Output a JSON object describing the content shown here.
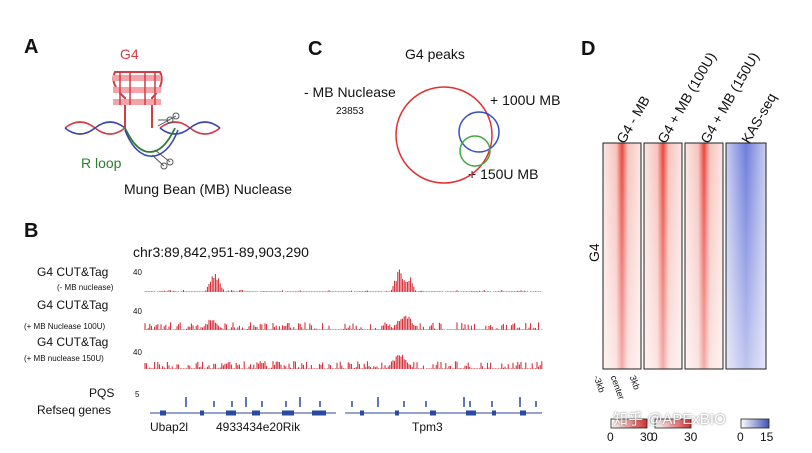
{
  "panels": {
    "a": "A",
    "b": "B",
    "c": "C",
    "d": "D"
  },
  "panel_a": {
    "g4_label": "G4",
    "rloop_label": "R loop",
    "nuclease_label": "Mung Bean (MB) Nuclease",
    "colors": {
      "g4": "#d33b45",
      "rloop": "#2e7d32",
      "dna_red": "#d33b45",
      "dna_blue": "#3949ab"
    }
  },
  "panel_b": {
    "locus": "chr3:89,842,951-89,903,290",
    "tracks": [
      {
        "title": "G4 CUT&Tag",
        "subtitle": "(- MB nuclease)",
        "ymax": "40"
      },
      {
        "title": "G4 CUT&Tag",
        "subtitle": "(+ MB Nuclease 100U)",
        "ymax": "40"
      },
      {
        "title": "G4 CUT&Tag",
        "subtitle": "(+ MB nuclease 150U)",
        "ymax": "40"
      }
    ],
    "pqs_label": "PQS",
    "pqs_ymax": "5",
    "refseq_label": "Refseq genes",
    "genes": [
      "Ubap2l",
      "4933434e20Rik",
      "Tpm3"
    ],
    "colors": {
      "signal": "#d11f2c",
      "genes": "#2a4aa0"
    }
  },
  "panel_c": {
    "title": "G4 peaks",
    "sets": [
      {
        "label": "- MB Nuclease",
        "count": "23853",
        "color": "#e03030"
      },
      {
        "label": "+ 100U MB",
        "color": "#3050c8"
      },
      {
        "label": "+ 150U MB",
        "color": "#40a840"
      }
    ]
  },
  "panel_d": {
    "columns": [
      "G4 - MB",
      "G4 + MB (100U)",
      "G4 + MB (150U)",
      "KAS-seq"
    ],
    "row_label": "G4",
    "x_ticks": [
      "-3kb",
      "center",
      "3kb"
    ],
    "scales": [
      {
        "min": "0",
        "max": "30"
      },
      {
        "min": "0",
        "max": "30"
      },
      {
        "min": "0",
        "max": "15"
      }
    ],
    "colors": {
      "g4": "#e8453c",
      "kas": "#4a5bd0"
    }
  },
  "watermark": "知乎 @APExBIO"
}
